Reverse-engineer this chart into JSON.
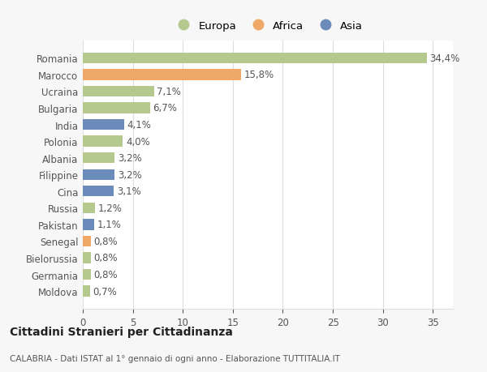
{
  "categories": [
    "Romania",
    "Marocco",
    "Ucraina",
    "Bulgaria",
    "India",
    "Polonia",
    "Albania",
    "Filippine",
    "Cina",
    "Russia",
    "Pakistan",
    "Senegal",
    "Bielorussia",
    "Germania",
    "Moldova"
  ],
  "values": [
    34.4,
    15.8,
    7.1,
    6.7,
    4.1,
    4.0,
    3.2,
    3.2,
    3.1,
    1.2,
    1.1,
    0.8,
    0.8,
    0.8,
    0.7
  ],
  "labels": [
    "34,4%",
    "15,8%",
    "7,1%",
    "6,7%",
    "4,1%",
    "4,0%",
    "3,2%",
    "3,2%",
    "3,1%",
    "1,2%",
    "1,1%",
    "0,8%",
    "0,8%",
    "0,8%",
    "0,7%"
  ],
  "continents": [
    "Europa",
    "Africa",
    "Europa",
    "Europa",
    "Asia",
    "Europa",
    "Europa",
    "Asia",
    "Asia",
    "Europa",
    "Asia",
    "Africa",
    "Europa",
    "Europa",
    "Europa"
  ],
  "colors": {
    "Europa": "#b5c98e",
    "Africa": "#f0a868",
    "Asia": "#6b8cba"
  },
  "title": "Cittadini Stranieri per Cittadinanza",
  "subtitle": "CALABRIA - Dati ISTAT al 1° gennaio di ogni anno - Elaborazione TUTTITALIA.IT",
  "xlim": [
    0,
    37
  ],
  "xticks": [
    0,
    5,
    10,
    15,
    20,
    25,
    30,
    35
  ],
  "background_color": "#f7f7f7",
  "plot_bg_color": "#ffffff",
  "grid_color": "#dddddd",
  "text_color": "#555555",
  "label_fontsize": 8.5,
  "tick_fontsize": 8.5,
  "bar_height": 0.65
}
